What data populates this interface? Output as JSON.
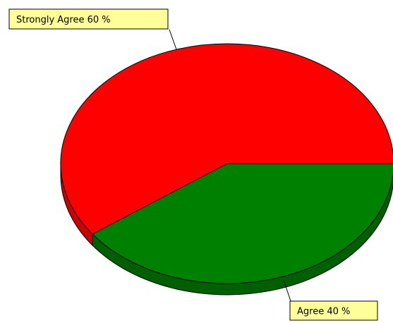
{
  "chart_data": {
    "type": "pie",
    "three_d": true,
    "title": "",
    "legend": "none",
    "slices": [
      {
        "label": "Strongly Agree",
        "value": 60,
        "display": "Strongly Agree 60 %",
        "color": "#ff0000",
        "side_color": "#cc0000"
      },
      {
        "label": "Agree",
        "value": 40,
        "display": "Agree 40 %",
        "color": "#008000",
        "side_color": "#006000"
      }
    ]
  }
}
